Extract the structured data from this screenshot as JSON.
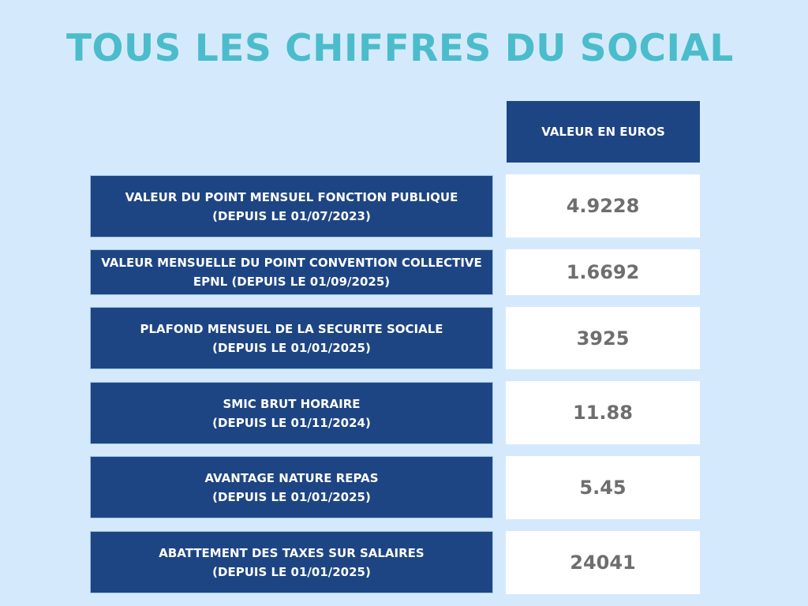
{
  "title": "TOUS LES CHIFFRES DU SOCIAL",
  "table": {
    "header_value": "VALEUR EN EUROS",
    "rows": [
      {
        "label_line1": "VALEUR DU POINT MENSUEL  FONCTION PUBLIQUE",
        "label_line2": "(DEPUIS LE 01/07/2023)",
        "value": "4.9228"
      },
      {
        "label_line1": "VALEUR MENSUELLE DU POINT CONVENTION COLLECTIVE",
        "label_line2": "EPNL (DEPUIS LE 01/09/2025)",
        "value": "1.6692"
      },
      {
        "label_line1": "PLAFOND MENSUEL DE LA SECURITE SOCIALE",
        "label_line2": "(DEPUIS LE 01/01/2025)",
        "value": "3925"
      },
      {
        "label_line1": "SMIC BRUT HORAIRE",
        "label_line2": "(DEPUIS LE 01/11/2024)",
        "value": "11.88"
      },
      {
        "label_line1": "AVANTAGE NATURE REPAS",
        "label_line2": "(DEPUIS LE 01/01/2025)",
        "value": "5.45"
      },
      {
        "label_line1": "ABATTEMENT DES TAXES SUR SALAIRES",
        "label_line2": "(DEPUIS LE 01/01/2025)",
        "value": "24041"
      }
    ]
  },
  "colors": {
    "background": "#d4eafc",
    "title": "#4bbccb",
    "label_cell": "#1e4583",
    "value_cell": "#ffffff",
    "value_text": "#6e6e6e"
  }
}
